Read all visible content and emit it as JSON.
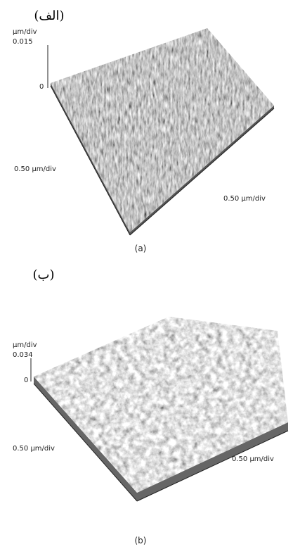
{
  "panels": [
    {
      "title": "(الف)",
      "z_unit": "µm/div",
      "z_max": "0.015",
      "z_min": "0",
      "y_axis_label": "0.50 µm/div",
      "x_axis_label": "0.50 µm/div",
      "caption": "(a)"
    },
    {
      "title": "(ب)",
      "z_unit": "µm/div",
      "z_max": "0.034",
      "z_min": "0",
      "y_axis_label": "0.50 µm/div",
      "x_axis_label": "0.50 µm/div",
      "caption": "(b)"
    }
  ]
}
